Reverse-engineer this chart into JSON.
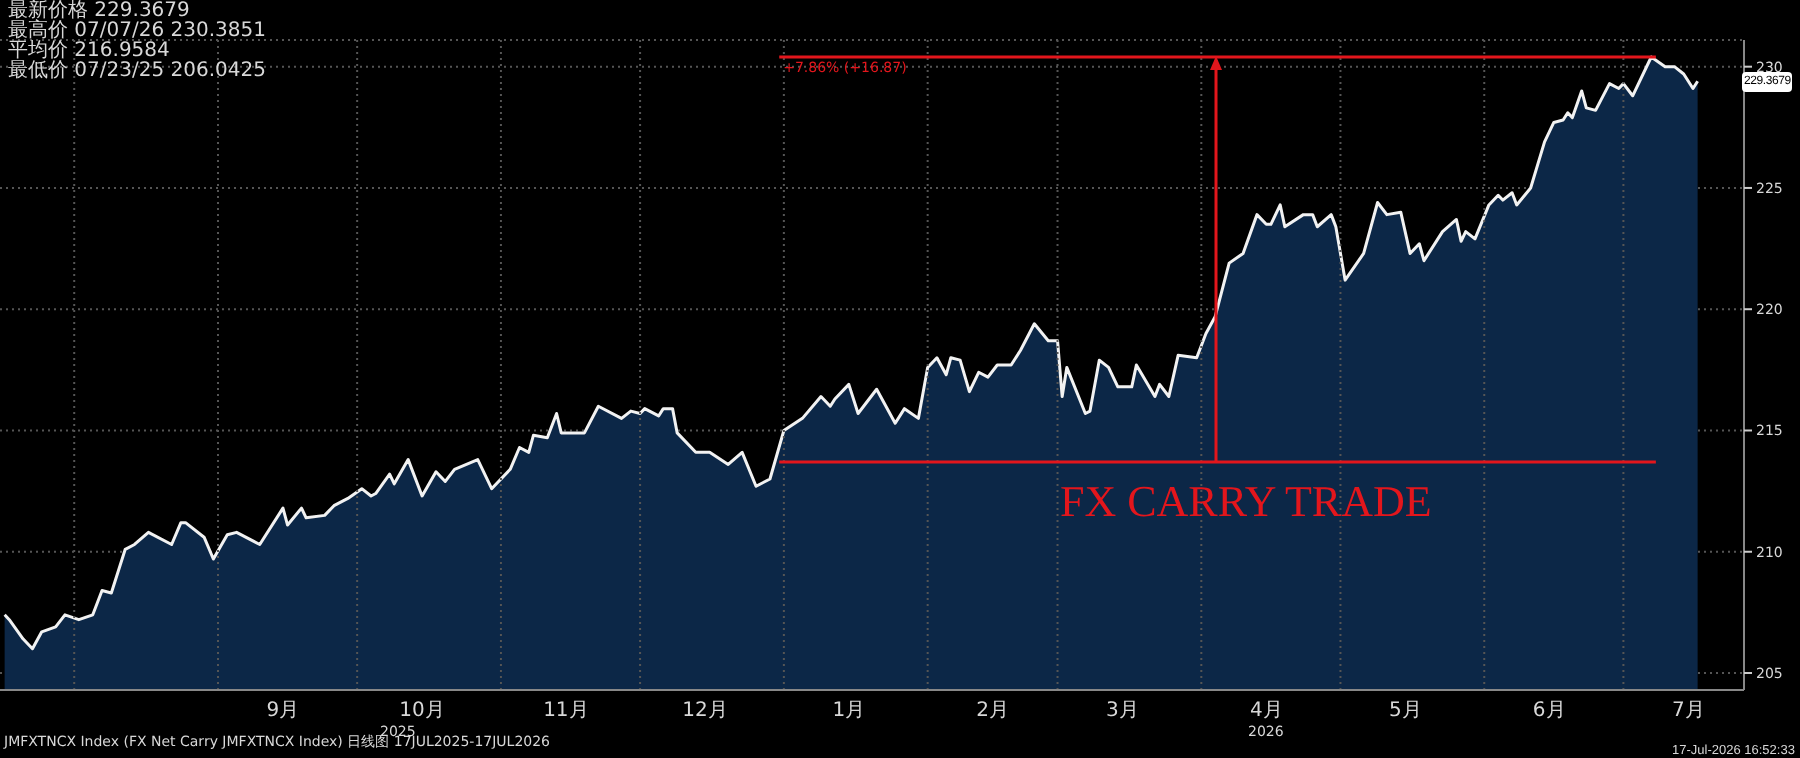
{
  "chart_data": {
    "type": "area",
    "annotations": [
      "最新价格 229.3679",
      "最高价 07/07/26 230.3851",
      "平均价 216.9584",
      "最低价 07/23/25 206.0425",
      "+7.86% (+16.87)",
      {
        "text": "FX CARRY TRADE",
        "x": "2026-04-04",
        "y": 213.7
      },
      "229.3679",
      "2025",
      "2026",
      "JMFXTNCX Index (FX Net Carry JMFXTNCX Index) 日线图 17JUL2025-17JUL2026",
      "17-Jul-2026 16:52:33"
    ],
    "xlim": [
      "2025-07-16",
      "2026-07-27"
    ],
    "xticks": [
      {
        "value": "2025-08-01",
        "label": null
      },
      {
        "value": "2025-09-01",
        "label": null
      },
      {
        "value": "2025-09-15",
        "label": "9月"
      },
      {
        "value": "2025-10-01",
        "label": null
      },
      {
        "value": "2025-10-15",
        "label": "10月"
      },
      {
        "value": "2025-11-01",
        "label": null
      },
      {
        "value": "2025-11-15",
        "label": "11月"
      },
      {
        "value": "2025-12-01",
        "label": null
      },
      {
        "value": "2025-12-15",
        "label": "12月"
      },
      {
        "value": "2026-01-01",
        "label": null
      },
      {
        "value": "2026-01-15",
        "label": "1月"
      },
      {
        "value": "2026-02-01",
        "label": null
      },
      {
        "value": "2026-02-15",
        "label": "2月"
      },
      {
        "value": "2026-03-01",
        "label": null
      },
      {
        "value": "2026-03-15",
        "label": "3月"
      },
      {
        "value": "2026-04-01",
        "label": null
      },
      {
        "value": "2026-04-15",
        "label": "4月"
      },
      {
        "value": "2026-05-01",
        "label": null
      },
      {
        "value": "2026-05-15",
        "label": "5月"
      },
      {
        "value": "2026-06-01",
        "label": null
      },
      {
        "value": "2026-06-15",
        "label": "6月"
      },
      {
        "value": "2026-07-01",
        "label": null
      },
      {
        "value": "2026-07-15",
        "label": "7月"
      }
    ],
    "ylim": [
      204.3,
      231.1
    ],
    "yticks": [
      205,
      210,
      215,
      220,
      225,
      230
    ],
    "grid": true,
    "series": [
      {
        "color": "#0c2747",
        "x": [
          "2025-07-17",
          "2025-07-18",
          "2025-07-21",
          "2025-07-23",
          "2025-07-25",
          "2025-07-28",
          "2025-07-30",
          "2025-08-02",
          "2025-08-05",
          "2025-08-07",
          "2025-08-09",
          "2025-08-12",
          "2025-08-14",
          "2025-08-17",
          "2025-08-22",
          "2025-08-24",
          "2025-08-25",
          "2025-08-29",
          "2025-08-31",
          "2025-09-03",
          "2025-09-05",
          "2025-09-10",
          "2025-09-15",
          "2025-09-16",
          "2025-09-19",
          "2025-09-20",
          "2025-09-24",
          "2025-09-26",
          "2025-09-29",
          "2025-10-02",
          "2025-10-04",
          "2025-10-05",
          "2025-10-08",
          "2025-10-09",
          "2025-10-12",
          "2025-10-15",
          "2025-10-18",
          "2025-10-20",
          "2025-10-22",
          "2025-10-27",
          "2025-10-30",
          "2025-11-03",
          "2025-11-05",
          "2025-11-07",
          "2025-11-08",
          "2025-11-11",
          "2025-11-13",
          "2025-11-14",
          "2025-11-19",
          "2025-11-22",
          "2025-11-27",
          "2025-11-29",
          "2025-12-01",
          "2025-12-02",
          "2025-12-05",
          "2025-12-06",
          "2025-12-08",
          "2025-12-09",
          "2025-12-13",
          "2025-12-16",
          "2025-12-20",
          "2025-12-23",
          "2025-12-26",
          "2025-12-29",
          "2026-01-01",
          "2026-01-05",
          "2026-01-09",
          "2026-01-11",
          "2026-01-12",
          "2026-01-15",
          "2026-01-17",
          "2026-01-21",
          "2026-01-25",
          "2026-01-27",
          "2026-01-30",
          "2026-02-01",
          "2026-02-03",
          "2026-02-05",
          "2026-02-06",
          "2026-02-08",
          "2026-02-10",
          "2026-02-12",
          "2026-02-14",
          "2026-02-16",
          "2026-02-19",
          "2026-02-21",
          "2026-02-24",
          "2026-02-27",
          "2026-03-01",
          "2026-03-02",
          "2026-03-03",
          "2026-03-07",
          "2026-03-08",
          "2026-03-10",
          "2026-03-12",
          "2026-03-14",
          "2026-03-17",
          "2026-03-18",
          "2026-03-22",
          "2026-03-23",
          "2026-03-25",
          "2026-03-27",
          "2026-03-31",
          "2026-04-02",
          "2026-04-04",
          "2026-04-07",
          "2026-04-10",
          "2026-04-13",
          "2026-04-15",
          "2026-04-16",
          "2026-04-18",
          "2026-04-19",
          "2026-04-23",
          "2026-04-25",
          "2026-04-26",
          "2026-04-29",
          "2026-04-30",
          "2026-05-02",
          "2026-05-06",
          "2026-05-09",
          "2026-05-11",
          "2026-05-14",
          "2026-05-16",
          "2026-05-18",
          "2026-05-19",
          "2026-05-23",
          "2026-05-26",
          "2026-05-27",
          "2026-05-28",
          "2026-05-30",
          "2026-06-02",
          "2026-06-04",
          "2026-06-05",
          "2026-06-07",
          "2026-06-08",
          "2026-06-11",
          "2026-06-14",
          "2026-06-16",
          "2026-06-18",
          "2026-06-19",
          "2026-06-20",
          "2026-06-22",
          "2026-06-23",
          "2026-06-25",
          "2026-06-28",
          "2026-06-30",
          "2026-07-01",
          "2026-07-03",
          "2026-07-07",
          "2026-07-10",
          "2026-07-12",
          "2026-07-14",
          "2026-07-16",
          "2026-07-17"
        ],
        "values": [
          207.4,
          207.2,
          206.4,
          206.0,
          206.7,
          206.9,
          207.4,
          207.2,
          207.4,
          208.4,
          208.3,
          210.1,
          210.3,
          210.8,
          210.3,
          211.2,
          211.2,
          210.6,
          209.7,
          210.7,
          210.8,
          210.3,
          211.8,
          211.1,
          211.8,
          211.4,
          211.5,
          211.9,
          212.2,
          212.6,
          212.3,
          212.4,
          213.2,
          212.8,
          213.8,
          212.3,
          213.3,
          212.9,
          213.4,
          213.8,
          212.6,
          213.4,
          214.3,
          214.1,
          214.8,
          214.7,
          215.7,
          214.9,
          214.9,
          216.0,
          215.5,
          215.8,
          215.7,
          215.9,
          215.6,
          215.9,
          215.9,
          214.9,
          214.1,
          214.1,
          213.6,
          214.1,
          212.7,
          213.0,
          215.0,
          215.5,
          216.4,
          216.0,
          216.3,
          216.9,
          215.7,
          216.7,
          215.3,
          215.9,
          215.5,
          217.6,
          218.0,
          217.3,
          218.0,
          217.9,
          216.6,
          217.4,
          217.2,
          217.7,
          217.7,
          218.3,
          219.4,
          218.7,
          218.7,
          216.4,
          217.6,
          215.7,
          215.8,
          217.9,
          217.6,
          216.8,
          216.8,
          217.7,
          216.4,
          216.9,
          216.4,
          218.1,
          218.0,
          219.0,
          219.7,
          221.9,
          222.3,
          223.9,
          223.5,
          223.5,
          224.3,
          223.4,
          223.9,
          223.9,
          223.4,
          223.9,
          223.4,
          221.2,
          222.3,
          224.4,
          223.9,
          224.0,
          222.3,
          222.7,
          222.0,
          223.2,
          223.7,
          222.8,
          223.2,
          222.9,
          224.3,
          224.7,
          224.5,
          224.8,
          224.3,
          225.0,
          226.9,
          227.7,
          227.8,
          228.1,
          227.9,
          229.0,
          228.3,
          228.2,
          229.3,
          229.1,
          229.3,
          228.8,
          230.4,
          230.0,
          230.0,
          229.7,
          229.1,
          229.4
        ]
      },
      {
        "type": "line",
        "color": "#e3161c",
        "x": [
          "2025-12-31",
          "2026-07-08"
        ],
        "values": [
          213.7,
          213.7
        ]
      },
      {
        "type": "line",
        "color": "#e3161c",
        "x": [
          "2025-12-31",
          "2026-07-08"
        ],
        "values": [
          230.4,
          230.4
        ]
      }
    ]
  }
}
